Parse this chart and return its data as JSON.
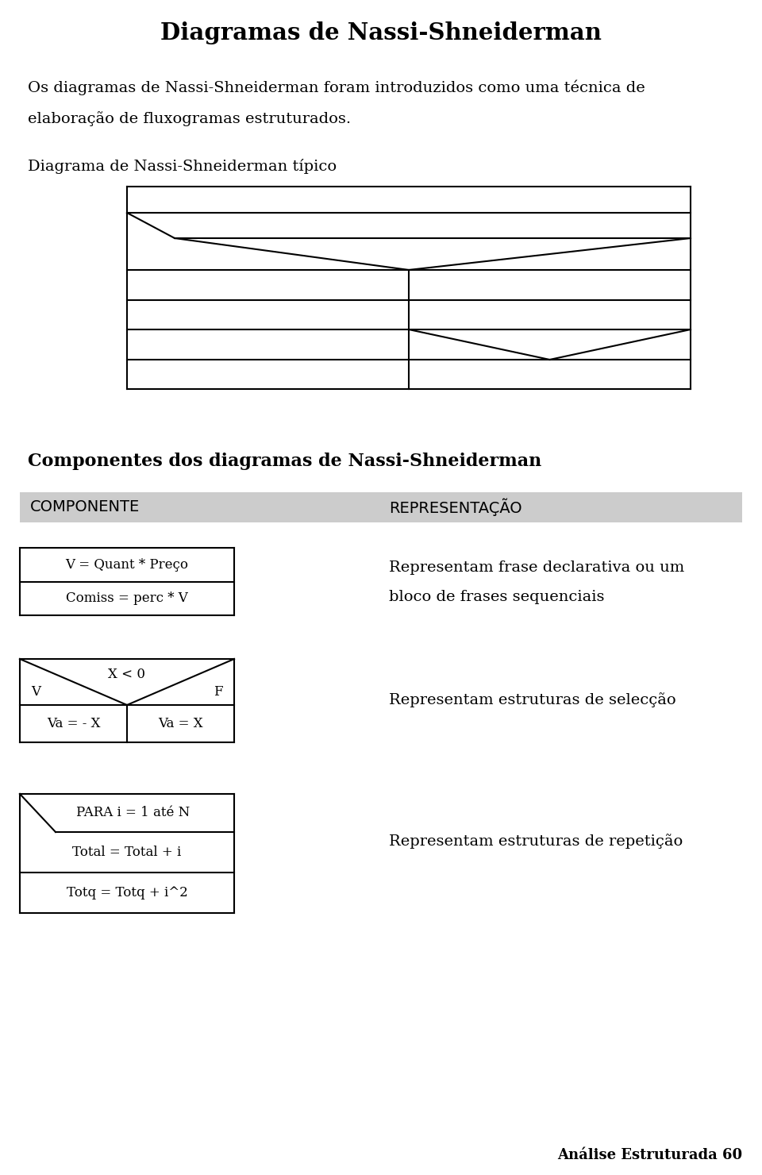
{
  "title": "Diagramas de Nassi-Shneiderman",
  "intro_line1": "Os diagramas de Nassi-Shneiderman foram introduzidos como uma técnica de",
  "intro_line2": "elaboração de fluxogramas estruturados.",
  "diagram_label": "Diagrama de Nassi-Shneiderman típico",
  "components_title": "Componentes dos diagramas de Nassi-Shneiderman",
  "header_col1": "COMPONENTE",
  "header_col2": "REPRESENTAÇÃO",
  "header_bg": "#cccccc",
  "row1_comp_lines": [
    "V = Quant * Preço",
    "Comiss = perc * V"
  ],
  "row1_rep_line1": "Representam frase declarativa ou um",
  "row1_rep_line2": "bloco de frases sequenciais",
  "row2_condition": "X < 0",
  "row2_true": "V",
  "row2_false": "F",
  "row2_left": "Va = - X",
  "row2_right": "Va = X",
  "row2_rep": "Representam estruturas de selecção",
  "row3_header": "PARA i = 1 até N",
  "row3_lines": [
    "Total = Total + i",
    "Totq = Totq + i^2"
  ],
  "row3_rep": "Representam estruturas de repetição",
  "footer": "Análise Estruturada 60",
  "bg_color": "#ffffff",
  "text_color": "#000000",
  "line_color": "#000000"
}
